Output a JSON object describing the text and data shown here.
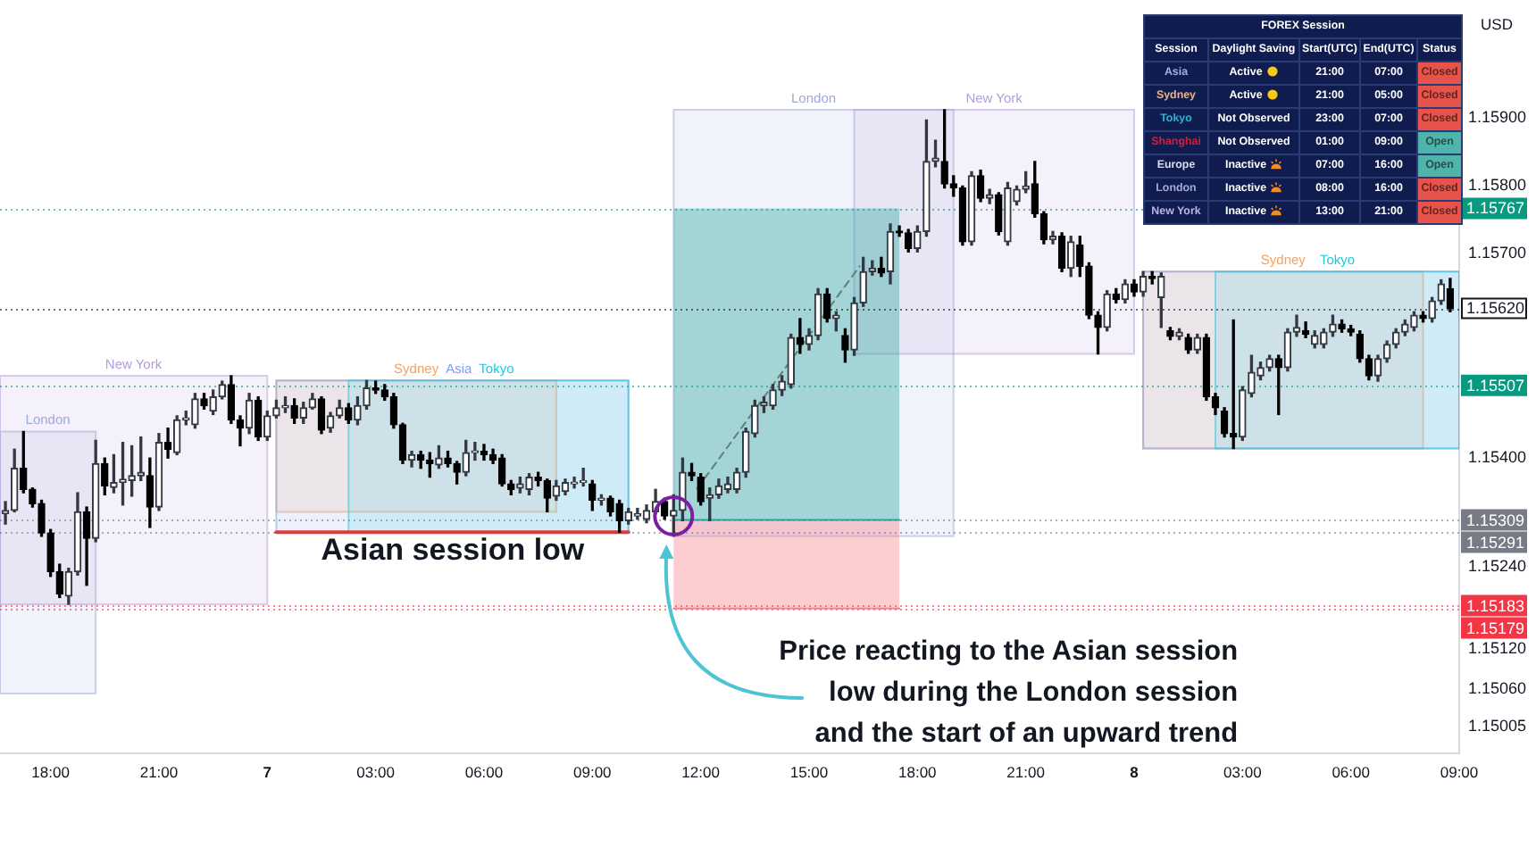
{
  "chart_data": [
    {
      "type": "candlestick",
      "x": [
        "--01-06T16:45",
        "--01-06T17:00",
        "--01-06T17:15",
        "--01-06T17:30",
        "--01-06T17:45",
        "--01-06T18:00",
        "--01-06T18:15",
        "--01-06T18:30",
        "--01-06T18:45",
        "--01-06T19:00",
        "--01-06T19:15",
        "--01-06T19:30",
        "--01-06T19:45",
        "--01-06T20:00",
        "--01-06T20:15",
        "--01-06T20:30",
        "--01-06T20:45",
        "--01-06T21:00",
        "--01-06T21:15",
        "--01-06T21:30",
        "--01-06T21:45",
        "--01-06T22:00",
        "--01-06T22:15",
        "--01-06T22:30",
        "--01-06T22:45",
        "--01-06T23:00",
        "--01-06T23:15",
        "--01-06T23:30",
        "--01-06T23:45",
        "--01-07T00:00",
        "--01-07T00:15",
        "--01-07T00:30",
        "--01-07T00:45",
        "--01-07T01:00",
        "--01-07T01:15",
        "--01-07T01:30",
        "--01-07T01:45",
        "--01-07T02:00",
        "--01-07T02:15",
        "--01-07T02:30",
        "--01-07T02:45",
        "--01-07T03:00",
        "--01-07T03:15",
        "--01-07T03:30",
        "--01-07T03:45",
        "--01-07T04:00",
        "--01-07T04:15",
        "--01-07T04:30",
        "--01-07T04:45",
        "--01-07T05:00",
        "--01-07T05:15",
        "--01-07T05:30",
        "--01-07T05:45",
        "--01-07T06:00",
        "--01-07T06:15",
        "--01-07T06:30",
        "--01-07T06:45",
        "--01-07T07:00",
        "--01-07T07:15",
        "--01-07T07:30",
        "--01-07T07:45",
        "--01-07T08:00",
        "--01-07T08:15",
        "--01-07T08:30",
        "--01-07T08:45",
        "--01-07T09:00",
        "--01-07T09:15",
        "--01-07T09:30",
        "--01-07T09:45",
        "--01-07T10:00",
        "--01-07T10:15",
        "--01-07T10:30",
        "--01-07T10:45",
        "--01-07T11:00",
        "--01-07T11:15",
        "--01-07T11:30",
        "--01-07T11:45",
        "--01-07T12:00",
        "--01-07T12:15",
        "--01-07T12:30",
        "--01-07T12:45",
        "--01-07T13:00",
        "--01-07T13:15",
        "--01-07T13:30",
        "--01-07T13:45",
        "--01-07T14:00",
        "--01-07T14:15",
        "--01-07T14:30",
        "--01-07T14:45",
        "--01-07T15:00",
        "--01-07T15:15",
        "--01-07T15:30",
        "--01-07T15:45",
        "--01-07T16:00",
        "--01-07T16:15",
        "--01-07T16:30",
        "--01-07T16:45",
        "--01-07T17:00",
        "--01-07T17:15",
        "--01-07T17:30",
        "--01-07T17:45",
        "--01-07T18:00",
        "--01-07T18:15",
        "--01-07T18:30",
        "--01-07T18:45",
        "--01-07T19:00",
        "--01-07T19:15",
        "--01-07T19:30",
        "--01-07T19:45",
        "--01-07T20:00",
        "--01-07T20:15",
        "--01-07T20:30",
        "--01-07T20:45",
        "--01-07T21:00",
        "--01-07T21:15",
        "--01-07T21:30",
        "--01-07T21:45",
        "--01-07T22:00",
        "--01-07T22:15",
        "--01-07T22:30",
        "--01-07T22:45",
        "--01-07T23:00",
        "--01-07T23:15",
        "--01-07T23:30",
        "--01-07T23:45",
        "--01-08T00:00",
        "--01-08T00:15",
        "--01-08T00:30",
        "--01-08T00:45",
        "--01-08T01:00",
        "--01-08T01:15",
        "--01-08T01:30",
        "--01-08T01:45",
        "--01-08T02:00",
        "--01-08T02:15",
        "--01-08T02:30",
        "--01-08T02:45",
        "--01-08T03:00",
        "--01-08T03:15",
        "--01-08T03:30",
        "--01-08T03:45",
        "--01-08T04:00",
        "--01-08T04:15",
        "--01-08T04:30",
        "--01-08T04:45",
        "--01-08T05:00",
        "--01-08T05:15",
        "--01-08T05:30",
        "--01-08T05:45",
        "--01-08T06:00",
        "--01-08T06:15",
        "--01-08T06:30",
        "--01-08T06:45",
        "--01-08T07:00",
        "--01-08T07:15",
        "--01-08T07:30",
        "--01-08T07:45",
        "--01-08T08:00",
        "--01-08T08:15",
        "--01-08T08:30",
        "--01-08T08:45"
      ],
      "ohlc": [
        [
          1.15318,
          1.15336,
          1.15303,
          1.15323
        ],
        [
          1.15323,
          1.15413,
          1.15321,
          1.15385
        ],
        [
          1.15385,
          1.15439,
          1.15349,
          1.15354
        ],
        [
          1.15354,
          1.15356,
          1.15328,
          1.15333
        ],
        [
          1.15333,
          1.15338,
          1.15285,
          1.1529
        ],
        [
          1.1529,
          1.15295,
          1.15226,
          1.15233
        ],
        [
          1.15233,
          1.15244,
          1.15195,
          1.152
        ],
        [
          1.15197,
          1.15238,
          1.15185,
          1.15233
        ],
        [
          1.15233,
          1.15349,
          1.15228,
          1.15321
        ],
        [
          1.15321,
          1.15328,
          1.15213,
          1.15282
        ],
        [
          1.15282,
          1.15426,
          1.15277,
          1.15392
        ],
        [
          1.15392,
          1.154,
          1.15346,
          1.15359
        ],
        [
          1.15357,
          1.15405,
          1.15349,
          1.15364
        ],
        [
          1.15364,
          1.15423,
          1.15331,
          1.15369
        ],
        [
          1.15367,
          1.15418,
          1.15344,
          1.15374
        ],
        [
          1.15374,
          1.15431,
          1.15367,
          1.15379
        ],
        [
          1.15374,
          1.154,
          1.15298,
          1.15328
        ],
        [
          1.15328,
          1.15436,
          1.15323,
          1.15423
        ],
        [
          1.15423,
          1.15444,
          1.154,
          1.15413
        ],
        [
          1.15408,
          1.15462,
          1.15405,
          1.15456
        ],
        [
          1.15456,
          1.15469,
          1.15449,
          1.15459
        ],
        [
          1.15449,
          1.15495,
          1.15444,
          1.15487
        ],
        [
          1.15487,
          1.15495,
          1.15472,
          1.15477
        ],
        [
          1.15469,
          1.155,
          1.15464,
          1.1549
        ],
        [
          1.1549,
          1.15513,
          1.15487,
          1.15508
        ],
        [
          1.15508,
          1.15521,
          1.15451,
          1.15456
        ],
        [
          1.15456,
          1.15462,
          1.15418,
          1.15444
        ],
        [
          1.15444,
          1.15495,
          1.15436,
          1.15485
        ],
        [
          1.15485,
          1.1549,
          1.15426,
          1.15431
        ],
        [
          1.15431,
          1.15469,
          1.15426,
          1.15462
        ],
        [
          1.15462,
          1.15485,
          1.15459,
          1.15474
        ],
        [
          1.15474,
          1.1549,
          1.15467,
          1.15477
        ],
        [
          1.15477,
          1.15487,
          1.15451,
          1.15459
        ],
        [
          1.15459,
          1.15482,
          1.15451,
          1.15474
        ],
        [
          1.15474,
          1.15495,
          1.15472,
          1.15487
        ],
        [
          1.15487,
          1.1549,
          1.15436,
          1.15441
        ],
        [
          1.15444,
          1.15467,
          1.15438,
          1.15462
        ],
        [
          1.15462,
          1.15485,
          1.15459,
          1.15474
        ],
        [
          1.15474,
          1.1548,
          1.15451,
          1.15456
        ],
        [
          1.15456,
          1.1549,
          1.15449,
          1.15477
        ],
        [
          1.15477,
          1.15514,
          1.15472,
          1.15503
        ],
        [
          1.15503,
          1.15513,
          1.15495,
          1.155
        ],
        [
          1.155,
          1.15508,
          1.15485,
          1.1549
        ],
        [
          1.1549,
          1.15495,
          1.15444,
          1.15449
        ],
        [
          1.15449,
          1.15451,
          1.15392,
          1.15397
        ],
        [
          1.15397,
          1.1541,
          1.15387,
          1.15405
        ],
        [
          1.15405,
          1.1541,
          1.15385,
          1.15397
        ],
        [
          1.15397,
          1.15408,
          1.15372,
          1.15392
        ],
        [
          1.1539,
          1.15418,
          1.15385,
          1.154
        ],
        [
          1.154,
          1.1541,
          1.15387,
          1.15392
        ],
        [
          1.15392,
          1.15395,
          1.15362,
          1.15379
        ],
        [
          1.15379,
          1.15426,
          1.15374,
          1.15408
        ],
        [
          1.15408,
          1.15423,
          1.15397,
          1.1541
        ],
        [
          1.1541,
          1.1542,
          1.15397,
          1.15405
        ],
        [
          1.15405,
          1.15413,
          1.15392,
          1.15397
        ],
        [
          1.154,
          1.15405,
          1.15359,
          1.15362
        ],
        [
          1.15362,
          1.15367,
          1.15346,
          1.15354
        ],
        [
          1.15356,
          1.15372,
          1.15349,
          1.15362
        ],
        [
          1.15354,
          1.15377,
          1.15346,
          1.15372
        ],
        [
          1.15372,
          1.15379,
          1.15359,
          1.15367
        ],
        [
          1.15367,
          1.15369,
          1.15321,
          1.15341
        ],
        [
          1.15344,
          1.15367,
          1.15338,
          1.15359
        ],
        [
          1.15351,
          1.15369,
          1.15346,
          1.15364
        ],
        [
          1.15362,
          1.15372,
          1.15356,
          1.15364
        ],
        [
          1.15364,
          1.15385,
          1.15359,
          1.15367
        ],
        [
          1.15362,
          1.15367,
          1.15323,
          1.15338
        ],
        [
          1.15338,
          1.15346,
          1.15331,
          1.15341
        ],
        [
          1.15341,
          1.15344,
          1.15315,
          1.15321
        ],
        [
          1.15333,
          1.15338,
          1.15291,
          1.15308
        ],
        [
          1.15308,
          1.15326,
          1.15303,
          1.15321
        ],
        [
          1.15315,
          1.15326,
          1.1531,
          1.15318
        ],
        [
          1.1531,
          1.15331,
          1.15305,
          1.15323
        ],
        [
          1.15321,
          1.15354,
          1.15318,
          1.15336
        ],
        [
          1.15336,
          1.15341,
          1.1531,
          1.15315
        ],
        [
          1.15315,
          1.15346,
          1.15285,
          1.15323
        ],
        [
          1.15323,
          1.154,
          1.15308,
          1.15379
        ],
        [
          1.15379,
          1.15392,
          1.15367,
          1.15374
        ],
        [
          1.15372,
          1.15377,
          1.15331,
          1.15336
        ],
        [
          1.15341,
          1.15356,
          1.15308,
          1.15346
        ],
        [
          1.15346,
          1.15369,
          1.15341,
          1.15359
        ],
        [
          1.15354,
          1.15372,
          1.15349,
          1.15362
        ],
        [
          1.15354,
          1.15385,
          1.15349,
          1.15379
        ],
        [
          1.15379,
          1.15444,
          1.15372,
          1.15439
        ],
        [
          1.15436,
          1.15485,
          1.15431,
          1.15477
        ],
        [
          1.15477,
          1.1549,
          1.15467,
          1.15482
        ],
        [
          1.15477,
          1.15508,
          1.15472,
          1.155
        ],
        [
          1.155,
          1.15521,
          1.15492,
          1.15513
        ],
        [
          1.15508,
          1.15582,
          1.15503,
          1.15577
        ],
        [
          1.15577,
          1.15605,
          1.15554,
          1.15567
        ],
        [
          1.15567,
          1.1559,
          1.15559,
          1.1558
        ],
        [
          1.1558,
          1.15649,
          1.15574,
          1.15641
        ],
        [
          1.15641,
          1.15649,
          1.156,
          1.15605
        ],
        [
          1.15605,
          1.15615,
          1.15587,
          1.1561
        ],
        [
          1.1558,
          1.1559,
          1.15541,
          1.15559
        ],
        [
          1.15559,
          1.15636,
          1.15551,
          1.15628
        ],
        [
          1.15628,
          1.15695,
          1.15623,
          1.15674
        ],
        [
          1.15674,
          1.1569,
          1.15669,
          1.15679
        ],
        [
          1.15679,
          1.15695,
          1.15667,
          1.15672
        ],
        [
          1.15674,
          1.15744,
          1.15656,
          1.15733
        ],
        [
          1.15733,
          1.15741,
          1.15726,
          1.15731
        ],
        [
          1.15731,
          1.15736,
          1.15703,
          1.15708
        ],
        [
          1.15708,
          1.15741,
          1.15703,
          1.15733
        ],
        [
          1.15733,
          1.15897,
          1.15726,
          1.15836
        ],
        [
          1.15836,
          1.15867,
          1.15828,
          1.15841
        ],
        [
          1.15836,
          1.15912,
          1.15797,
          1.15803
        ],
        [
          1.15803,
          1.15815,
          1.15785,
          1.15797
        ],
        [
          1.15797,
          1.158,
          1.15713,
          1.15718
        ],
        [
          1.15718,
          1.15821,
          1.15713,
          1.15815
        ],
        [
          1.15815,
          1.15823,
          1.15777,
          1.15782
        ],
        [
          1.15782,
          1.15795,
          1.15774,
          1.15787
        ],
        [
          1.15787,
          1.1579,
          1.15728,
          1.15733
        ],
        [
          1.15718,
          1.15805,
          1.15713,
          1.15797
        ],
        [
          1.15777,
          1.158,
          1.15772,
          1.15795
        ],
        [
          1.15795,
          1.15821,
          1.1579,
          1.158
        ],
        [
          1.15803,
          1.15836,
          1.15754,
          1.15759
        ],
        [
          1.15759,
          1.15762,
          1.15715,
          1.15721
        ],
        [
          1.15721,
          1.15733,
          1.15715,
          1.15726
        ],
        [
          1.15726,
          1.15731,
          1.15674,
          1.15679
        ],
        [
          1.15679,
          1.15726,
          1.15667,
          1.15718
        ],
        [
          1.15713,
          1.15726,
          1.15667,
          1.15682
        ],
        [
          1.15682,
          1.15687,
          1.15605,
          1.1561
        ],
        [
          1.1561,
          1.15615,
          1.15553,
          1.15592
        ],
        [
          1.15592,
          1.15646,
          1.15587,
          1.15641
        ],
        [
          1.15641,
          1.15649,
          1.15628,
          1.15633
        ],
        [
          1.15633,
          1.15662,
          1.15628,
          1.15656
        ],
        [
          1.15656,
          1.15662,
          1.15638,
          1.15644
        ],
        [
          1.15644,
          1.15674,
          1.15638,
          1.15667
        ],
        [
          1.15667,
          1.15674,
          1.15656,
          1.15664
        ],
        [
          1.15636,
          1.15672,
          1.15592,
          1.15667
        ],
        [
          1.15587,
          1.15592,
          1.15574,
          1.15579
        ],
        [
          1.15579,
          1.1559,
          1.15574,
          1.15585
        ],
        [
          1.15577,
          1.15582,
          1.15554,
          1.15559
        ],
        [
          1.15559,
          1.15582,
          1.15554,
          1.15577
        ],
        [
          1.15577,
          1.15582,
          1.15485,
          1.1549
        ],
        [
          1.1549,
          1.15495,
          1.15464,
          1.15474
        ],
        [
          1.15469,
          1.15474,
          1.15431,
          1.15436
        ],
        [
          1.15436,
          1.15603,
          1.15414,
          1.15431
        ],
        [
          1.15431,
          1.15505,
          1.15426,
          1.155
        ],
        [
          1.15495,
          1.15551,
          1.1549,
          1.15526
        ],
        [
          1.15521,
          1.15541,
          1.15515,
          1.15533
        ],
        [
          1.15533,
          1.15551,
          1.15528,
          1.15546
        ],
        [
          1.15546,
          1.15551,
          1.15464,
          1.15533
        ],
        [
          1.15533,
          1.1559,
          1.15528,
          1.15585
        ],
        [
          1.15585,
          1.1561,
          1.15579,
          1.15592
        ],
        [
          1.15587,
          1.156,
          1.15577,
          1.15582
        ],
        [
          1.15567,
          1.15587,
          1.15562,
          1.1558
        ],
        [
          1.15567,
          1.1559,
          1.15562,
          1.15585
        ],
        [
          1.15585,
          1.1561,
          1.15579,
          1.15597
        ],
        [
          1.15597,
          1.15603,
          1.15585,
          1.1559
        ],
        [
          1.1559,
          1.15595,
          1.1558,
          1.15585
        ],
        [
          1.15582,
          1.15587,
          1.15541,
          1.15546
        ],
        [
          1.15546,
          1.15551,
          1.15515,
          1.15521
        ],
        [
          1.15521,
          1.15551,
          1.15513,
          1.15546
        ],
        [
          1.15546,
          1.15572,
          1.15541,
          1.15567
        ],
        [
          1.15567,
          1.1559,
          1.15562,
          1.15585
        ],
        [
          1.15585,
          1.15603,
          1.1558,
          1.15597
        ],
        [
          1.15592,
          1.15615,
          1.15587,
          1.1561
        ],
        [
          1.1561,
          1.15615,
          1.156,
          1.15605
        ],
        [
          1.15605,
          1.15636,
          1.156,
          1.15631
        ],
        [
          1.15631,
          1.15662,
          1.15626,
          1.15656
        ],
        [
          1.15649,
          1.15664,
          1.15615,
          1.1562
        ]
      ],
      "xlim": [
        "--01-06T16:36",
        "--01-08T09:00"
      ],
      "xticks": [
        {
          "value": "--01-06T18:00",
          "label": "18:00"
        },
        {
          "value": "--01-06T21:00",
          "label": "21:00"
        },
        {
          "value": "--01-07T00:00",
          "label": "7"
        },
        {
          "value": "--01-07T03:00",
          "label": "03:00"
        },
        {
          "value": "--01-07T06:00",
          "label": "06:00"
        },
        {
          "value": "--01-07T09:00",
          "label": "09:00"
        },
        {
          "value": "--01-07T12:00",
          "label": "12:00"
        },
        {
          "value": "--01-07T15:00",
          "label": "15:00"
        },
        {
          "value": "--01-07T18:00",
          "label": "18:00"
        },
        {
          "value": "--01-07T21:00",
          "label": "21:00"
        },
        {
          "value": "--01-08T00:00",
          "label": "8"
        },
        {
          "value": "--01-08T03:00",
          "label": "03:00"
        },
        {
          "value": "--01-08T06:00",
          "label": "06:00"
        },
        {
          "value": "--01-08T09:00",
          "label": "09:00"
        }
      ],
      "ylim": [
        1.14966,
        1.16046
      ],
      "yticks": [
        {
          "value": 1.159,
          "label": "1.15900"
        },
        {
          "value": 1.158,
          "label": "1.15800"
        },
        {
          "value": 1.157,
          "label": "1.15700"
        },
        {
          "value": 1.154,
          "label": "1.15400"
        },
        {
          "value": 1.1524,
          "label": "1.15240"
        },
        {
          "value": 1.1512,
          "label": "1.15120"
        },
        {
          "value": 1.1506,
          "label": "1.15060"
        },
        {
          "value": 1.15005,
          "label": "1.15005"
        }
      ],
      "ylabel": "USD",
      "series": [
        {
          "type": "line",
          "name": "London",
          "color": "#9fa8da",
          "x": [
            "--01-06T16:36",
            "--01-06T19:15"
          ],
          "values": [
            null,
            null
          ],
          "lower": [
            1.15054,
            1.15054
          ],
          "upper": [
            1.15439,
            1.15439
          ]
        },
        {
          "type": "line",
          "name": "New York",
          "color": "#b39ddb",
          "x": [
            "--01-06T16:36",
            "--01-07T00:00"
          ],
          "values": [
            null,
            null
          ],
          "lower": [
            1.15185,
            1.15185
          ],
          "upper": [
            1.15521,
            1.15521
          ]
        },
        {
          "type": "line",
          "name": "Sydney",
          "color": "#f4a261",
          "x": [
            "--01-07T00:15",
            "--01-07T08:00"
          ],
          "values": [
            null,
            null
          ],
          "lower": [
            1.15321,
            1.15321
          ],
          "upper": [
            1.15514,
            1.15514
          ]
        },
        {
          "type": "line",
          "name": "Asia",
          "color": "#7e9cef",
          "x": [
            "--01-07T00:15",
            "--01-07T10:00"
          ],
          "values": [
            null,
            null
          ],
          "lower": [
            1.15291,
            1.15291
          ],
          "upper": [
            1.15514,
            1.15514
          ]
        },
        {
          "type": "line",
          "name": "Tokyo",
          "color": "#26c6da",
          "x": [
            "--01-07T02:15",
            "--01-07T10:00"
          ],
          "values": [
            null,
            null
          ],
          "lower": [
            1.15291,
            1.15291
          ],
          "upper": [
            1.15514,
            1.15514
          ]
        },
        {
          "type": "line",
          "name": "London",
          "color": "#9fa8da",
          "x": [
            "--01-07T11:15",
            "--01-07T19:00"
          ],
          "values": [
            null,
            null
          ],
          "lower": [
            1.15285,
            1.15285
          ],
          "upper": [
            1.15912,
            1.15912
          ]
        },
        {
          "type": "line",
          "name": "New York",
          "color": "#b39ddb",
          "x": [
            "--01-07T16:15",
            "--01-08T00:00"
          ],
          "values": [
            null,
            null
          ],
          "lower": [
            1.15553,
            1.15553
          ],
          "upper": [
            1.15912,
            1.15912
          ]
        },
        {
          "type": "line",
          "name": "Sydney",
          "color": "#f4a261",
          "x": [
            "--01-08T00:15",
            "--01-08T08:00"
          ],
          "values": [
            null,
            null
          ],
          "lower": [
            1.15414,
            1.15414
          ],
          "upper": [
            1.15674,
            1.15674
          ]
        },
        {
          "type": "line",
          "color": "#7e9cef",
          "x": [
            "--01-08T00:15",
            "--01-08T09:00"
          ],
          "values": [
            null,
            null
          ],
          "lower": [
            1.15414,
            1.15414
          ],
          "upper": [
            1.15674,
            1.15674
          ]
        },
        {
          "type": "line",
          "name": "Tokyo",
          "color": "#26c6da",
          "x": [
            "--01-08T02:15",
            "--01-08T09:00"
          ],
          "values": [
            null,
            null
          ],
          "lower": [
            1.15414,
            1.15414
          ],
          "upper": [
            1.15674,
            1.15674
          ]
        },
        {
          "type": "line",
          "color": "#26a69a",
          "x": [
            "--01-07T11:15",
            "--01-07T17:30"
          ],
          "values": [
            1.15309,
            1.15309
          ],
          "lower": [
            1.15309,
            1.15309
          ],
          "upper": [
            1.15767,
            1.15767
          ]
        },
        {
          "type": "line",
          "color": "#f77c87",
          "x": [
            "--01-07T11:15",
            "--01-07T17:30"
          ],
          "values": [
            1.15179,
            1.15179
          ],
          "lower": [
            1.15179,
            1.15179
          ],
          "upper": [
            1.15309,
            1.15309
          ]
        },
        {
          "type": "line",
          "color": "#e53935",
          "x": [
            "--01-07T00:15",
            "--01-07T10:00"
          ],
          "values": [
            1.15291,
            1.15291
          ]
        },
        {
          "type": "line",
          "color": "#5f7f7a",
          "x": [
            "--01-07T11:54",
            "--01-07T16:24"
          ],
          "values": [
            1.15355,
            1.15682
          ],
          "line_style": "dashed"
        },
        {
          "type": "scatter",
          "color": "#7b1fa2",
          "x": [
            "--01-07T11:15"
          ],
          "values": [
            1.15315
          ],
          "marker": "circle"
        }
      ],
      "ref_lines": [
        {
          "axis": "y",
          "value": 1.15767,
          "label": "1.15767",
          "color": "#089981"
        },
        {
          "axis": "y",
          "value": 1.1562,
          "label": "1.15620",
          "color": "#131722"
        },
        {
          "axis": "y",
          "value": 1.15507,
          "label": "1.15507",
          "color": "#089981"
        },
        {
          "axis": "y",
          "value": 1.15309,
          "label": "1.15309",
          "color": "#787b86"
        },
        {
          "axis": "y",
          "value": 1.15291,
          "label": "1.15291",
          "color": "#787b86"
        },
        {
          "axis": "y",
          "value": 1.15183,
          "label": "1.15183",
          "color": "#f23645"
        },
        {
          "axis": "y",
          "value": 1.15179,
          "label": "1.15179",
          "color": "#f23645"
        }
      ],
      "annotations": [
        {
          "text": "Asian session low",
          "x": "--01-07T05:08",
          "y": 1.15291
        },
        {
          "text": "Price reacting to the Asian session\nlow during the London session\nand the start of an upward trend",
          "x": "--01-07T11:03",
          "y": 1.15273
        }
      ]
    },
    {
      "type": "other",
      "title": "FOREX Session",
      "annotations": [
        "Session",
        "Daylight Saving",
        "Start(UTC)",
        "End(UTC)",
        "Status",
        "Asia",
        "Active",
        "21:00",
        "07:00",
        "Closed",
        "Sydney",
        "Active",
        "21:00",
        "05:00",
        "Closed",
        "Tokyo",
        "Not Observed",
        "23:00",
        "07:00",
        "Closed",
        "Shanghai",
        "Not Observed",
        "01:00",
        "09:00",
        "Open",
        "Europe",
        "Inactive",
        "07:00",
        "16:00",
        "Open",
        "London",
        "Inactive",
        "08:00",
        "16:00",
        "Closed",
        "New York",
        "Inactive",
        "13:00",
        "21:00",
        "Closed"
      ],
      "colors": [
        "#ffffff",
        "#ffffff",
        "#ffffff",
        "#ffffff",
        "#ffffff",
        "#9fb0ea",
        "#ffffff",
        "#ffffff",
        "#ffffff",
        "#e5534b",
        "#e8b48a",
        "#ffffff",
        "#ffffff",
        "#ffffff",
        "#e5534b",
        "#22b8d4",
        "#ffffff",
        "#ffffff",
        "#ffffff",
        "#e5534b",
        "#d21f3c",
        "#ffffff",
        "#ffffff",
        "#ffffff",
        "#4fb5ab",
        "#d9dcea",
        "#ffffff",
        "#ffffff",
        "#ffffff",
        "#4fb5ab",
        "#a3aad4",
        "#ffffff",
        "#ffffff",
        "#ffffff",
        "#e5534b",
        "#b9b3e6",
        "#ffffff",
        "#ffffff",
        "#ffffff",
        "#e5534b"
      ]
    }
  ]
}
